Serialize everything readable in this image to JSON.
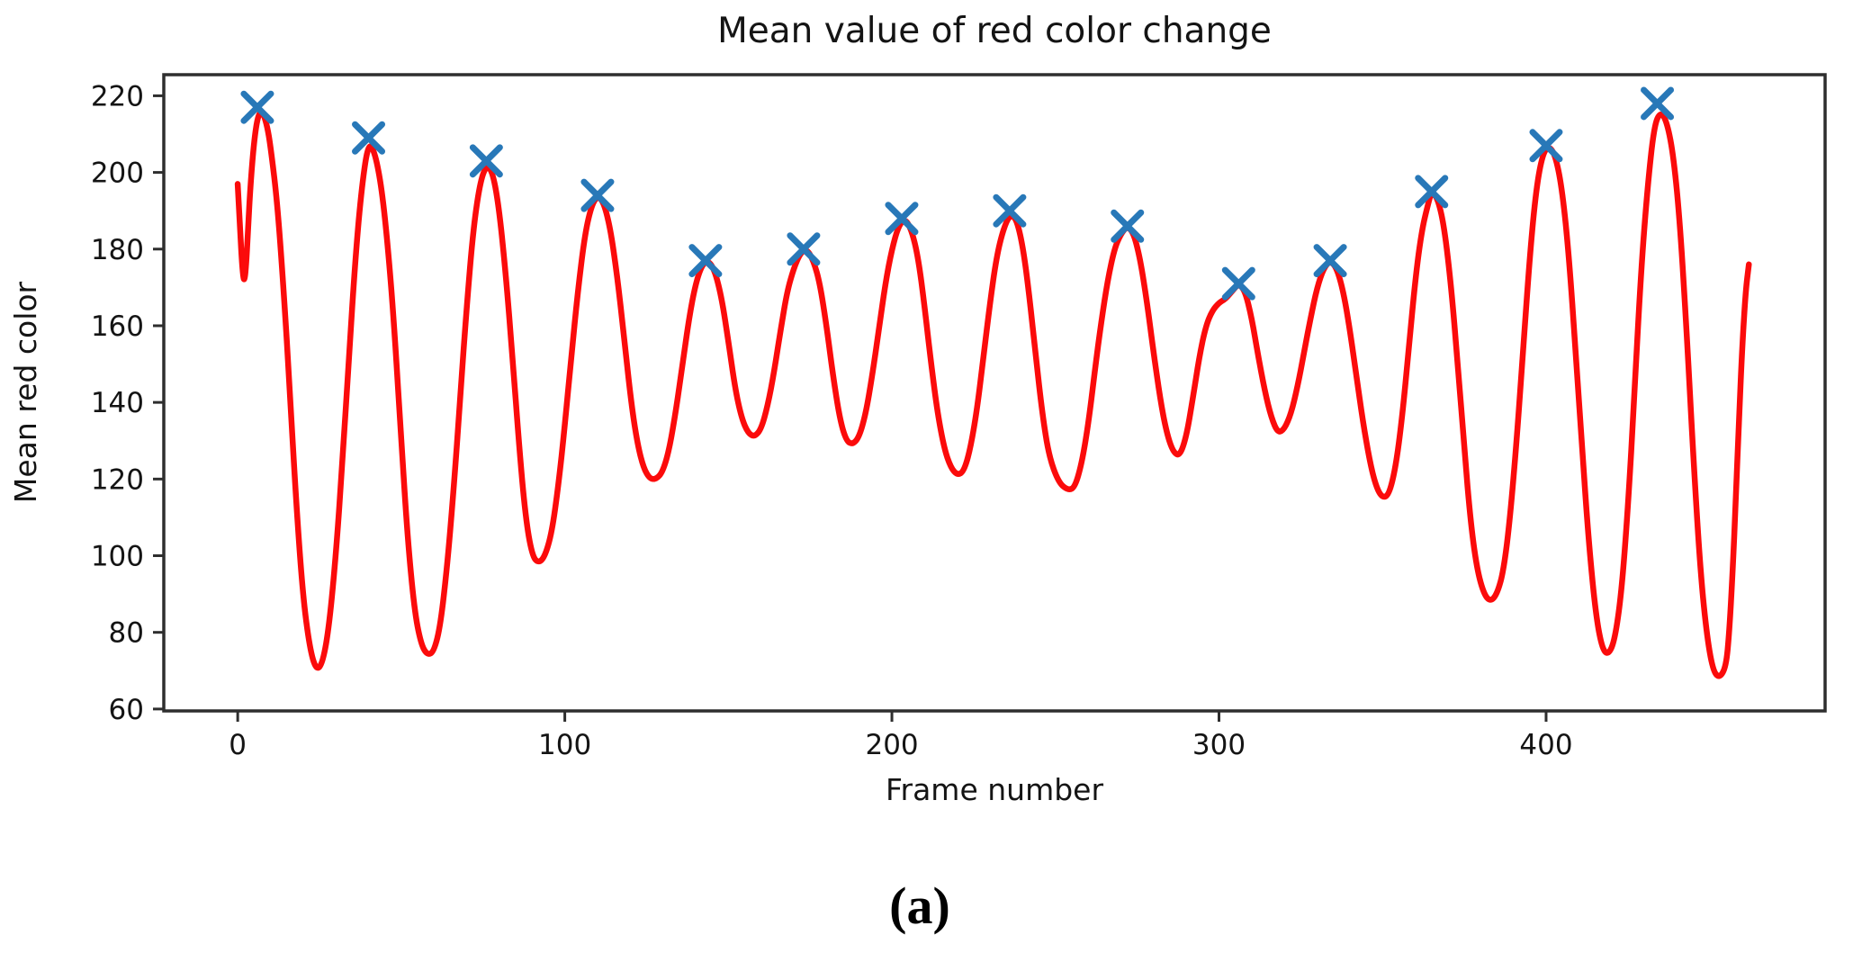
{
  "figure": {
    "caption": "(a)"
  },
  "chart_data": {
    "type": "line",
    "title": "Mean value of red color change",
    "xlabel": "Frame number",
    "ylabel": "Mean red color",
    "xlim": [
      -22.6,
      485.3
    ],
    "ylim": [
      59.5,
      225.5
    ],
    "x_ticks": [
      0,
      100,
      200,
      300,
      400
    ],
    "y_ticks": [
      60,
      80,
      100,
      120,
      140,
      160,
      180,
      200,
      220
    ],
    "grid": false,
    "legend": null,
    "colors": {
      "line": "#fb0b0b",
      "marker": "#2878b8",
      "spine": "#2e2e2e",
      "text": "#141414"
    },
    "series": [
      {
        "name": "mean-red-value-line",
        "type": "line",
        "color": "#fb0b0b",
        "linewidth": 6.5,
        "points": [
          [
            0,
            197
          ],
          [
            0.7,
            185
          ],
          [
            1.4,
            175
          ],
          [
            2,
            171
          ],
          [
            2.6,
            176
          ],
          [
            3.2,
            186
          ],
          [
            4,
            198
          ],
          [
            5,
            208
          ],
          [
            6,
            214
          ],
          [
            7,
            216
          ],
          [
            8,
            215
          ],
          [
            9,
            212
          ],
          [
            10,
            207
          ],
          [
            12,
            193
          ],
          [
            14,
            170
          ],
          [
            16,
            142
          ],
          [
            18,
            112
          ],
          [
            20,
            89
          ],
          [
            22,
            76
          ],
          [
            24,
            70
          ],
          [
            26,
            72
          ],
          [
            28,
            82
          ],
          [
            30,
            100
          ],
          [
            32,
            124
          ],
          [
            34,
            152
          ],
          [
            36,
            178
          ],
          [
            38,
            197
          ],
          [
            40,
            208
          ],
          [
            42,
            205
          ],
          [
            44,
            196
          ],
          [
            46,
            180
          ],
          [
            48,
            158
          ],
          [
            50,
            130
          ],
          [
            52,
            104
          ],
          [
            54,
            86
          ],
          [
            56,
            77
          ],
          [
            58,
            74
          ],
          [
            60,
            75
          ],
          [
            62,
            82
          ],
          [
            64,
            97
          ],
          [
            66,
            117
          ],
          [
            68,
            141
          ],
          [
            70,
            165
          ],
          [
            72,
            185
          ],
          [
            74,
            197
          ],
          [
            76,
            202
          ],
          [
            78,
            200
          ],
          [
            80,
            190
          ],
          [
            82,
            173
          ],
          [
            84,
            152
          ],
          [
            86,
            129
          ],
          [
            88,
            110
          ],
          [
            90,
            100
          ],
          [
            92,
            98
          ],
          [
            94,
            100
          ],
          [
            96,
            106
          ],
          [
            98,
            118
          ],
          [
            100,
            134
          ],
          [
            102,
            152
          ],
          [
            104,
            169
          ],
          [
            106,
            183
          ],
          [
            108,
            191
          ],
          [
            110,
            194
          ],
          [
            112,
            192
          ],
          [
            114,
            185
          ],
          [
            116,
            173
          ],
          [
            118,
            158
          ],
          [
            120,
            142
          ],
          [
            122,
            130
          ],
          [
            124,
            123
          ],
          [
            126,
            120
          ],
          [
            128,
            120
          ],
          [
            130,
            122
          ],
          [
            132,
            128
          ],
          [
            134,
            138
          ],
          [
            136,
            150
          ],
          [
            138,
            162
          ],
          [
            140,
            171
          ],
          [
            142,
            176
          ],
          [
            144,
            177
          ],
          [
            146,
            174
          ],
          [
            148,
            167
          ],
          [
            150,
            156
          ],
          [
            152,
            144
          ],
          [
            154,
            136
          ],
          [
            156,
            132
          ],
          [
            158,
            131
          ],
          [
            160,
            133
          ],
          [
            162,
            139
          ],
          [
            164,
            148
          ],
          [
            166,
            159
          ],
          [
            168,
            169
          ],
          [
            170,
            175
          ],
          [
            172,
            179
          ],
          [
            174,
            180
          ],
          [
            176,
            177
          ],
          [
            178,
            171
          ],
          [
            180,
            160
          ],
          [
            182,
            147
          ],
          [
            184,
            136
          ],
          [
            186,
            130
          ],
          [
            188,
            129
          ],
          [
            190,
            131
          ],
          [
            192,
            137
          ],
          [
            194,
            147
          ],
          [
            196,
            159
          ],
          [
            198,
            171
          ],
          [
            200,
            180
          ],
          [
            202,
            186
          ],
          [
            204,
            188
          ],
          [
            206,
            185
          ],
          [
            208,
            178
          ],
          [
            210,
            165
          ],
          [
            212,
            150
          ],
          [
            214,
            137
          ],
          [
            216,
            128
          ],
          [
            218,
            123
          ],
          [
            220,
            121
          ],
          [
            222,
            122
          ],
          [
            224,
            128
          ],
          [
            226,
            138
          ],
          [
            228,
            152
          ],
          [
            230,
            166
          ],
          [
            232,
            178
          ],
          [
            234,
            185
          ],
          [
            236,
            189
          ],
          [
            238,
            188
          ],
          [
            240,
            181
          ],
          [
            242,
            168
          ],
          [
            244,
            152
          ],
          [
            246,
            137
          ],
          [
            248,
            126
          ],
          [
            251,
            119
          ],
          [
            254,
            117
          ],
          [
            256,
            118
          ],
          [
            258,
            124
          ],
          [
            260,
            134
          ],
          [
            262,
            148
          ],
          [
            264,
            161
          ],
          [
            266,
            172
          ],
          [
            268,
            180
          ],
          [
            270,
            184
          ],
          [
            272,
            186
          ],
          [
            274,
            184
          ],
          [
            276,
            177
          ],
          [
            278,
            166
          ],
          [
            280,
            153
          ],
          [
            282,
            141
          ],
          [
            284,
            132
          ],
          [
            286,
            127
          ],
          [
            288,
            126
          ],
          [
            290,
            131
          ],
          [
            292,
            141
          ],
          [
            294,
            152
          ],
          [
            296,
            160
          ],
          [
            298,
            164
          ],
          [
            300,
            166
          ],
          [
            302,
            167
          ],
          [
            304,
            169
          ],
          [
            306,
            171
          ],
          [
            308,
            169
          ],
          [
            310,
            162
          ],
          [
            312,
            152
          ],
          [
            314,
            143
          ],
          [
            316,
            136
          ],
          [
            318,
            132
          ],
          [
            320,
            133
          ],
          [
            322,
            137
          ],
          [
            324,
            144
          ],
          [
            326,
            153
          ],
          [
            328,
            162
          ],
          [
            330,
            170
          ],
          [
            332,
            175
          ],
          [
            334,
            177
          ],
          [
            336,
            175
          ],
          [
            338,
            169
          ],
          [
            340,
            159
          ],
          [
            342,
            147
          ],
          [
            344,
            135
          ],
          [
            346,
            125
          ],
          [
            348,
            118
          ],
          [
            350,
            115
          ],
          [
            352,
            116
          ],
          [
            354,
            123
          ],
          [
            356,
            136
          ],
          [
            358,
            154
          ],
          [
            360,
            172
          ],
          [
            362,
            185
          ],
          [
            364,
            192
          ],
          [
            365,
            195
          ],
          [
            367,
            193
          ],
          [
            369,
            185
          ],
          [
            371,
            170
          ],
          [
            373,
            150
          ],
          [
            375,
            128
          ],
          [
            377,
            108
          ],
          [
            379,
            96
          ],
          [
            381,
            90
          ],
          [
            383,
            88
          ],
          [
            385,
            90
          ],
          [
            387,
            96
          ],
          [
            389,
            110
          ],
          [
            391,
            130
          ],
          [
            393,
            154
          ],
          [
            395,
            178
          ],
          [
            397,
            196
          ],
          [
            399,
            205
          ],
          [
            401,
            207
          ],
          [
            403,
            204
          ],
          [
            405,
            195
          ],
          [
            407,
            178
          ],
          [
            409,
            154
          ],
          [
            411,
            128
          ],
          [
            413,
            104
          ],
          [
            415,
            86
          ],
          [
            417,
            76
          ],
          [
            419,
            74
          ],
          [
            421,
            78
          ],
          [
            423,
            90
          ],
          [
            425,
            112
          ],
          [
            427,
            142
          ],
          [
            429,
            174
          ],
          [
            431,
            196
          ],
          [
            433,
            212
          ],
          [
            435,
            216
          ],
          [
            437,
            213
          ],
          [
            439,
            204
          ],
          [
            441,
            186
          ],
          [
            443,
            158
          ],
          [
            445,
            126
          ],
          [
            447,
            98
          ],
          [
            449,
            80
          ],
          [
            451,
            70
          ],
          [
            453,
            68
          ],
          [
            455,
            71
          ],
          [
            456,
            80
          ],
          [
            457,
            95
          ],
          [
            458,
            115
          ],
          [
            459,
            136
          ],
          [
            460,
            155
          ],
          [
            461,
            169
          ],
          [
            462,
            176
          ]
        ]
      },
      {
        "name": "detected-peaks",
        "type": "scatter",
        "marker": "x",
        "color": "#2878b8",
        "markersize": 15,
        "x": [
          6,
          40,
          76,
          110,
          143,
          173,
          203,
          236,
          272,
          306,
          334,
          365,
          400,
          434
        ],
        "y": [
          217,
          209,
          203,
          194,
          177,
          180,
          188,
          190,
          186,
          171,
          177,
          195,
          207,
          218
        ]
      }
    ]
  }
}
